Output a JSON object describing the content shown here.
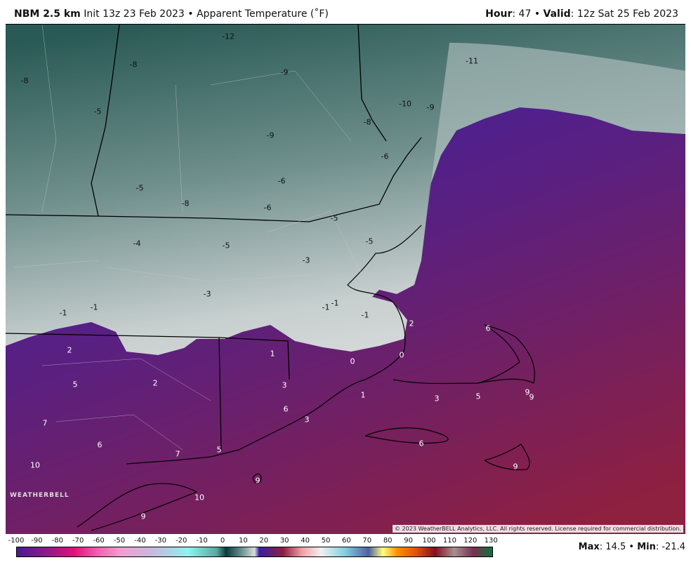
{
  "header": {
    "model": "NBM 2.5 km",
    "init": "Init 13z 23 Feb 2023",
    "sep": "•",
    "field": "Apparent Temperature (˚F)",
    "hour_label": "Hour",
    "hour": "47",
    "valid_label": "Valid",
    "valid": "12z Sat 25 Feb 2023"
  },
  "map": {
    "colors": {
      "cold_dark": "#2a5a55",
      "cold_light": "#d4d8d8",
      "warm_near": "#3a1fa6",
      "warm_far": "#8e2040"
    },
    "labels": [
      "-12",
      "-8",
      "-9",
      "-11",
      "-8",
      "-5",
      "-10",
      "-9",
      "-8",
      "-9",
      "-6",
      "-6",
      "-5",
      "-8",
      "-6",
      "-5",
      "-5",
      "-4",
      "-5",
      "-3",
      "-3",
      "-1",
      "-1",
      "-1",
      "-1",
      "-1",
      "2",
      "6",
      "2",
      "1",
      "0",
      "0",
      "5",
      "2",
      "3",
      "1",
      "3",
      "5",
      "9",
      "9",
      "6",
      "3",
      "7",
      "6",
      "6",
      "7",
      "5",
      "10",
      "9",
      "9",
      "10",
      "9"
    ],
    "copyright": "© 2023 WeatherBELL Analytics, LLC. All rights reserved. License required for commercial distribution.",
    "logo": "WEATHERBELL"
  },
  "colorbar": {
    "ticks": [
      "-100",
      "-90",
      "-80",
      "-70",
      "-60",
      "-50",
      "-40",
      "-30",
      "-20",
      "-10",
      "0",
      "10",
      "20",
      "30",
      "40",
      "50",
      "60",
      "70",
      "80",
      "90",
      "100",
      "110",
      "120",
      "130"
    ]
  },
  "stats": {
    "max_label": "Max",
    "max": "14.5",
    "min_label": "Min",
    "min": "-21.4"
  }
}
